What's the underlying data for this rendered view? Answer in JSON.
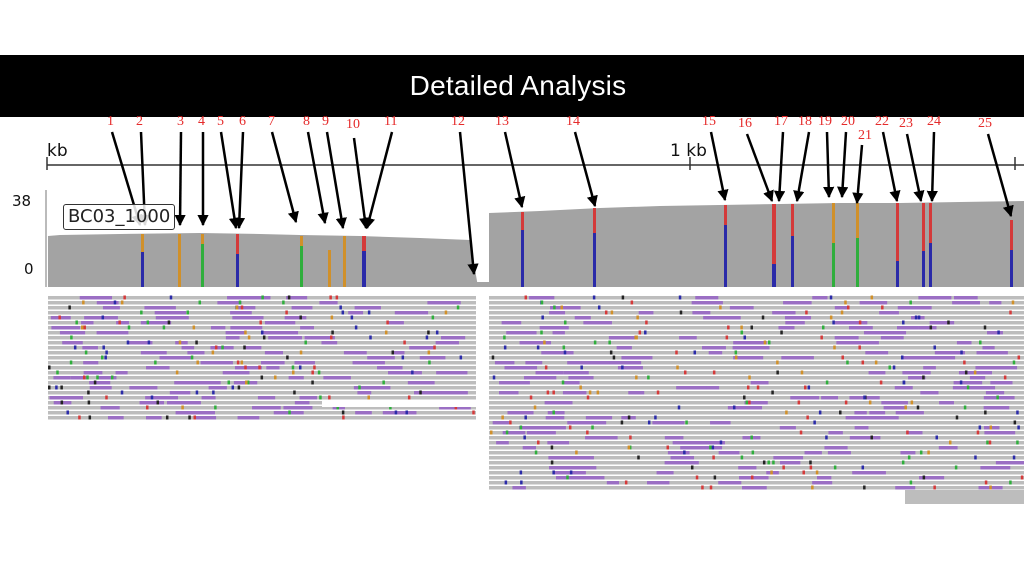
{
  "slide": {
    "title": "Detailed Analysis"
  },
  "ruler": {
    "start_label": "kb",
    "mid_label": "1 kb"
  },
  "coverage": {
    "max_label": "38",
    "min_label": "0",
    "track_name": "BC03_1000"
  },
  "colors": {
    "title_bg": "#000000",
    "label_red": "#e52a2a",
    "coverage_gray": "#a3a3a3",
    "read_purple": "#9b6fc4"
  },
  "variant_labels": [
    "1",
    "2",
    "3",
    "4",
    "5",
    "6",
    "7",
    "8",
    "9",
    "10",
    "11",
    "12",
    "13",
    "14",
    "15",
    "16",
    "17",
    "18",
    "19",
    "20",
    "21",
    "22",
    "23",
    "24",
    "25"
  ]
}
